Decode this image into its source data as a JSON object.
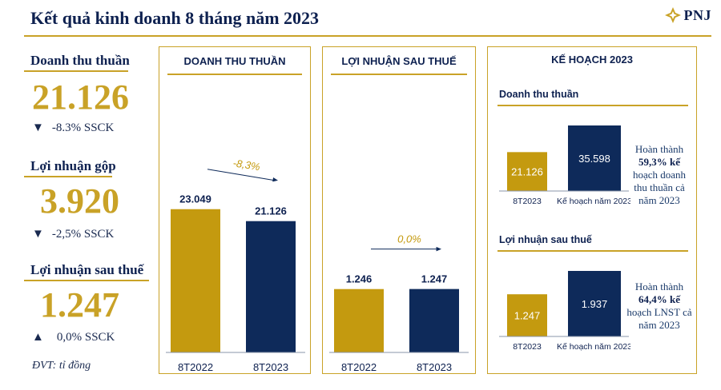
{
  "header": {
    "title": "Kết quả kinh doanh 8 tháng năm 2023",
    "logo_text": "PNJ"
  },
  "kpis": [
    {
      "label": "Doanh thu thuần",
      "value": "21.126",
      "arrow": "▼",
      "change": "-8.3% SSCK"
    },
    {
      "label": "Lợi nhuận gộp",
      "value": "3.920",
      "arrow": "▼",
      "change": "-2,5% SSCK"
    },
    {
      "label": "Lợi nhuận sau thuế",
      "value": "1.247",
      "arrow": "▲",
      "change": "0,0% SSCK"
    }
  ],
  "unit_note": "ĐVT: tỉ đồng",
  "colors": {
    "gold": "#c9a227",
    "bar_gold": "#c49a0f",
    "navy": "#0e2a5a"
  },
  "chart_data": [
    {
      "type": "bar",
      "title": "DOANH THU THUẦN",
      "categories": [
        "8T2022",
        "8T2023"
      ],
      "values": [
        23049,
        21126
      ],
      "value_labels": [
        "23.049",
        "21.126"
      ],
      "growth_label": "-8,3%",
      "ylim": [
        0,
        25000
      ]
    },
    {
      "type": "bar",
      "title": "LỢI NHUẬN SAU THUẾ",
      "categories": [
        "8T2022",
        "8T2023"
      ],
      "values": [
        1246,
        1247
      ],
      "value_labels": [
        "1.246",
        "1.247"
      ],
      "growth_label": "0,0%",
      "ylim": [
        0,
        2500
      ]
    },
    {
      "type": "bar",
      "title": "KẾ HOẠCH 2023",
      "subtitle": "Doanh thu thuần",
      "categories": [
        "8T2023",
        "Kế hoạch năm 2023"
      ],
      "values": [
        21126,
        35598
      ],
      "value_labels": [
        "21.126",
        "35.598"
      ],
      "note_pre": "Hoàn thành",
      "note_bold": "59,3% kế",
      "note_post": "hoạch doanh thu thuần cả năm 2023"
    },
    {
      "type": "bar",
      "subtitle": "Lợi nhuận sau thuế",
      "categories": [
        "8T2023",
        "Kế hoạch năm 2023"
      ],
      "values": [
        1247,
        1937
      ],
      "value_labels": [
        "1.247",
        "1.937"
      ],
      "note_pre": "Hoàn thành",
      "note_bold": "64,4% kế",
      "note_post": "hoạch LNST cả năm 2023"
    }
  ]
}
